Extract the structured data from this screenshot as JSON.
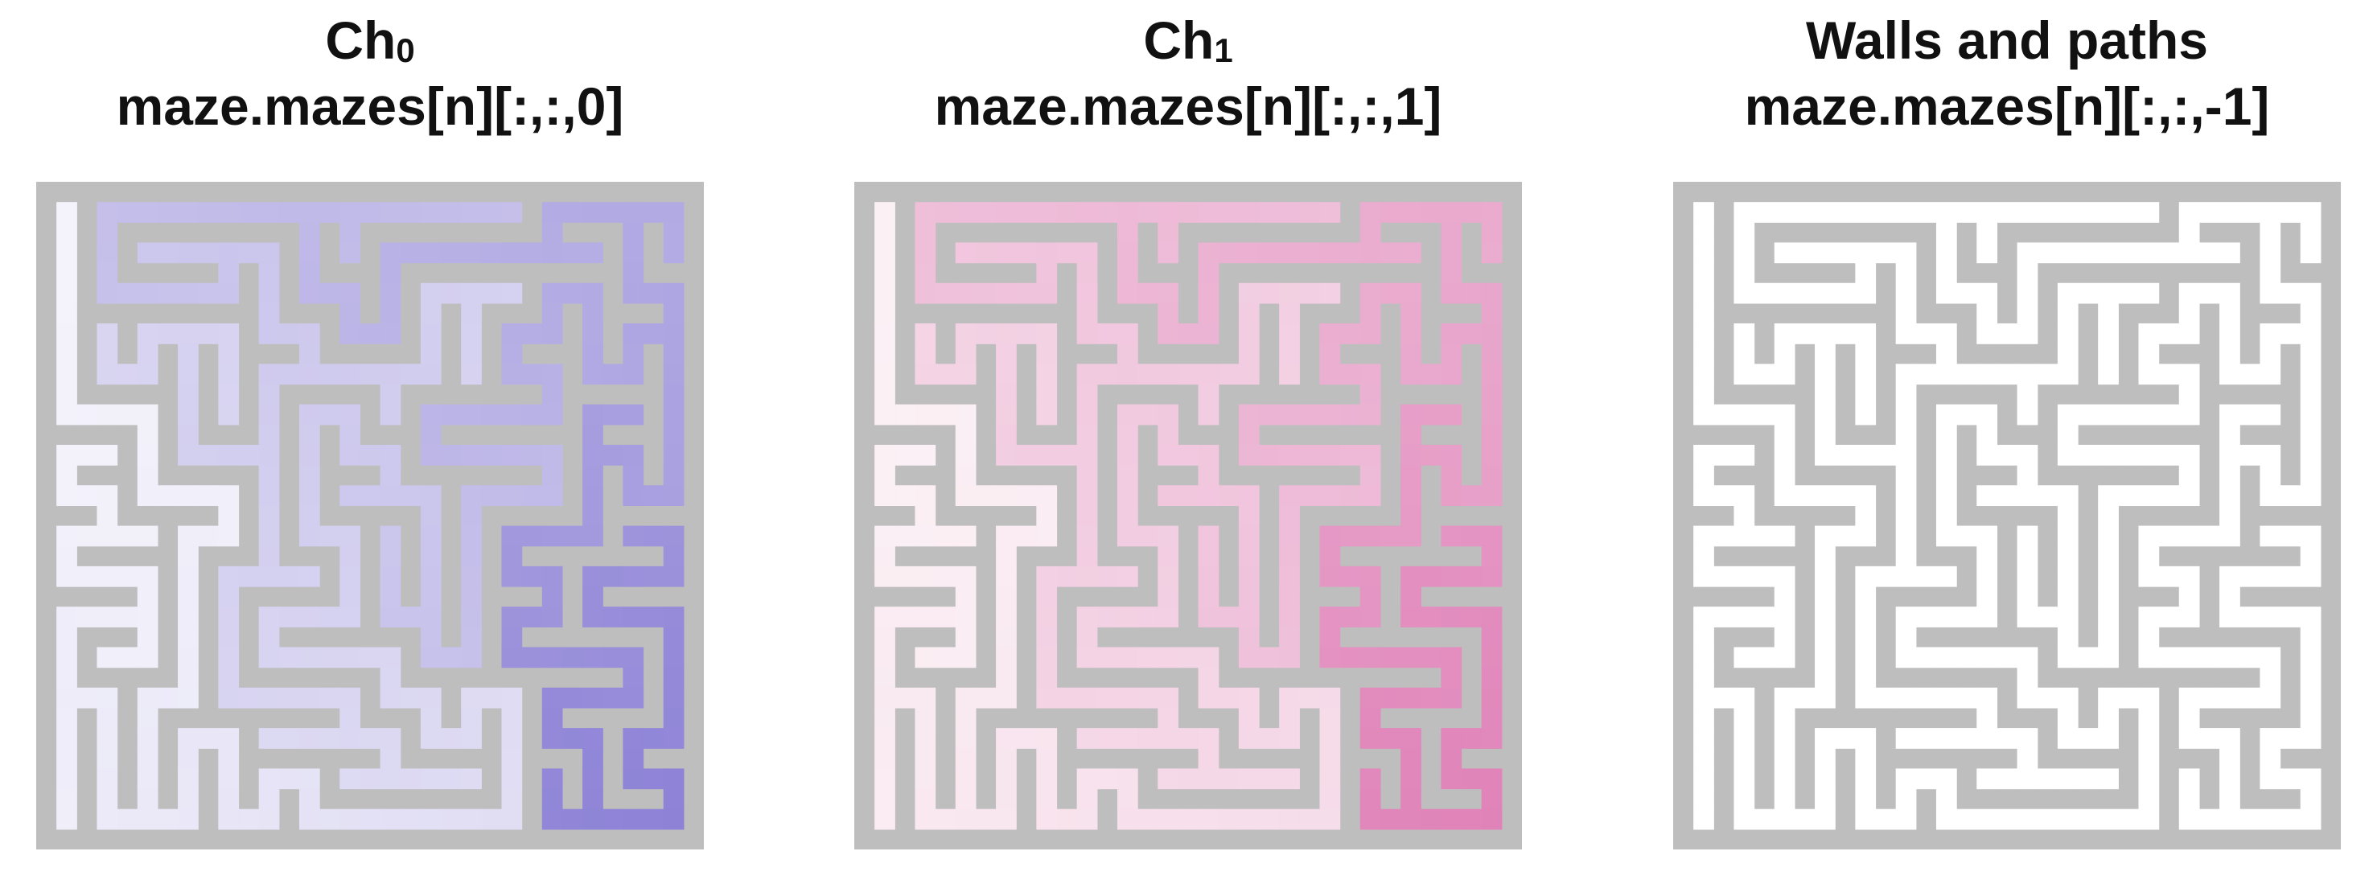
{
  "panels": [
    {
      "id": "ch0",
      "title_main": "Ch",
      "title_sub": "0",
      "title_line2": "maze.mazes[n][:,:,0]",
      "gradient": "purple",
      "colors": {
        "light": "#f4f3fb",
        "dark": "#8d82d6"
      }
    },
    {
      "id": "ch1",
      "title_main": "Ch",
      "title_sub": "1",
      "title_line2": "maze.mazes[n][:,:,1]",
      "gradient": "pink",
      "colors": {
        "light": "#fbf1f5",
        "dark": "#e083b9"
      }
    },
    {
      "id": "walls",
      "title_line1": "Walls and paths",
      "title_line2": "maze.mazes[n][:,:,-1]",
      "gradient": "none",
      "colors": {
        "light": "#ffffff",
        "dark": "#ffffff"
      }
    }
  ],
  "colors": {
    "wall": "#bebebe",
    "background": "#ffffff",
    "title": "#111111"
  }
}
